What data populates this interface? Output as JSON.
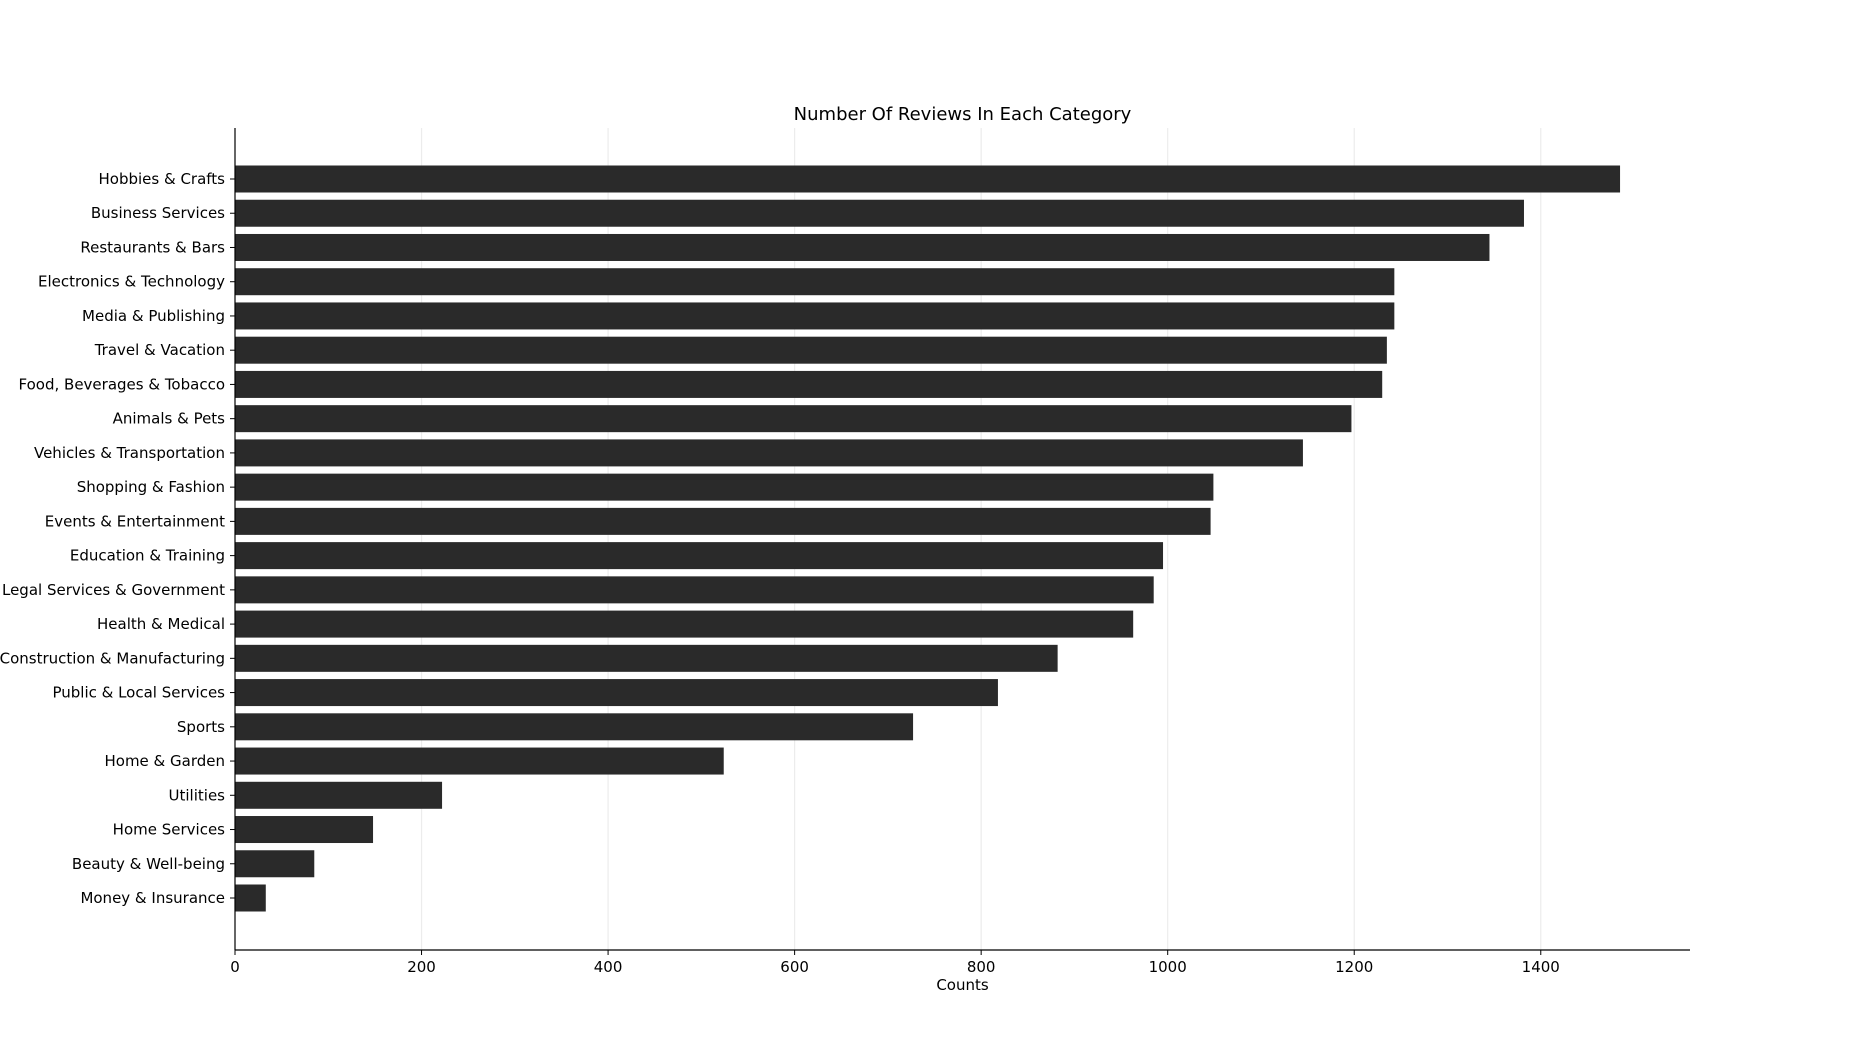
{
  "chart_data": {
    "type": "bar",
    "orientation": "horizontal",
    "title": "Number Of Reviews In Each Category",
    "xlabel": "Counts",
    "ylabel": "",
    "xlim": [
      0,
      1560
    ],
    "x_ticks": [
      0,
      200,
      400,
      600,
      800,
      1000,
      1200,
      1400
    ],
    "grid": "vertical",
    "bar_color": "#2a2a2a",
    "grid_color": "#ececec",
    "categories": [
      "Hobbies & Crafts",
      "Business Services",
      "Restaurants & Bars",
      "Electronics & Technology",
      "Media & Publishing",
      "Travel & Vacation",
      "Food, Beverages & Tobacco",
      "Animals & Pets",
      "Vehicles & Transportation",
      "Shopping & Fashion",
      "Events & Entertainment",
      "Education & Training",
      "Legal Services & Government",
      "Health & Medical",
      "Construction & Manufacturing",
      "Public & Local Services",
      "Sports",
      "Home & Garden",
      "Utilities",
      "Home Services",
      "Beauty & Well-being",
      "Money & Insurance"
    ],
    "values": [
      1485,
      1382,
      1345,
      1243,
      1243,
      1235,
      1230,
      1197,
      1145,
      1049,
      1046,
      995,
      985,
      963,
      882,
      818,
      727,
      524,
      222,
      148,
      85,
      33
    ]
  }
}
